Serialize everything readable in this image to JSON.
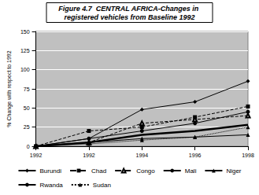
{
  "chart_data": {
    "type": "line",
    "title": "Figure 4.7  CENTRAL AFRICA-Changes in registered vehicles from Baseline 1992",
    "y_label": "% Change with respect to 1992",
    "categories": [
      "1992",
      "1992",
      "1994",
      "1996",
      "1998"
    ],
    "series": [
      {
        "name": "Burundi",
        "color": "#000000",
        "marker": "diamond",
        "line_style": "solid",
        "values": [
          0,
          10,
          48,
          58,
          85
        ]
      },
      {
        "name": "Chad",
        "color": "#000000",
        "marker": "square",
        "line_style": "dashed",
        "values": [
          0,
          20,
          25,
          38,
          52
        ]
      },
      {
        "name": "Congo",
        "color": "#000000",
        "marker": "triangle-open",
        "line_style": "dashed",
        "values": [
          0,
          5,
          30,
          35,
          40
        ]
      },
      {
        "name": "Mali",
        "color": "#000000",
        "marker": "none",
        "line_style": "thick",
        "values": [
          0,
          5,
          15,
          20,
          28
        ]
      },
      {
        "name": "Niger",
        "color": "#000000",
        "marker": "triangle",
        "line_style": "solid",
        "values": [
          0,
          5,
          10,
          12,
          15
        ]
      },
      {
        "name": "Rwanda",
        "color": "#000000",
        "marker": "circle",
        "line_style": "solid",
        "values": [
          0,
          10,
          20,
          30,
          45
        ]
      },
      {
        "name": "Sudan",
        "color": "#000000",
        "marker": "triangle",
        "line_style": "dotted",
        "values": [
          0,
          3,
          8,
          12,
          25
        ]
      }
    ],
    "ylim": [
      0,
      150
    ],
    "yticks": [
      0,
      25,
      50,
      75,
      100,
      125,
      150
    ],
    "grid": true,
    "legend": "bottom"
  }
}
